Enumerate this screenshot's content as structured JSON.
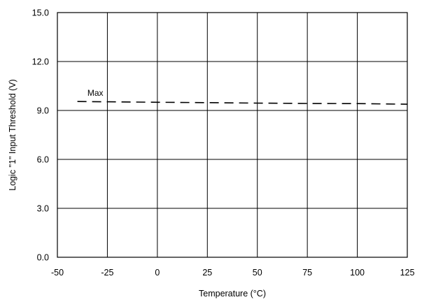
{
  "chart_data": {
    "type": "line",
    "title": "",
    "xlabel": "Temperature (°C)",
    "ylabel": "Logic \"1\" Input Threshold (V)",
    "xlim": [
      -50,
      125
    ],
    "ylim": [
      0,
      15
    ],
    "xticks": [
      -50,
      -25,
      0,
      25,
      50,
      75,
      100,
      125
    ],
    "yticks": [
      0,
      3,
      6,
      9,
      12,
      15
    ],
    "xtick_labels": [
      "-50",
      "-25",
      "0",
      "25",
      "50",
      "75",
      "100",
      "125"
    ],
    "ytick_labels": [
      "0.0",
      "3.0",
      "6.0",
      "9.0",
      "12.0",
      "15.0"
    ],
    "grid": true,
    "series": [
      {
        "name": "Max",
        "style": "dashed",
        "color": "#000000",
        "x": [
          -40,
          -25,
          0,
          25,
          50,
          75,
          100,
          125
        ],
        "y": [
          9.55,
          9.53,
          9.5,
          9.48,
          9.45,
          9.43,
          9.42,
          9.38
        ]
      }
    ],
    "annotations": [
      {
        "text": "Max",
        "x": -35,
        "y": 9.9
      }
    ]
  }
}
